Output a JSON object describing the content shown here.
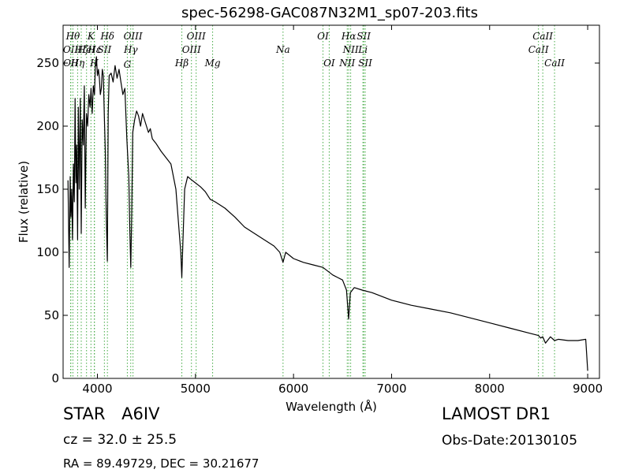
{
  "chart_data": {
    "type": "line",
    "title": "spec-56298-GAC087N32M1_sp07-203.fits",
    "xlabel": "Wavelength (Å)",
    "ylabel": "Flux (relative)",
    "xlim": [
      3650,
      9120
    ],
    "ylim": [
      0,
      280
    ],
    "xticks": [
      4000,
      5000,
      6000,
      7000,
      8000,
      9000
    ],
    "yticks": [
      0,
      50,
      100,
      150,
      200,
      250
    ],
    "grid": false,
    "line_color": "#000000",
    "marker_color": "#44aa44",
    "series": [
      {
        "x": [
          3700,
          3712,
          3722,
          3730,
          3738,
          3746,
          3755,
          3764,
          3772,
          3780,
          3788,
          3798,
          3805,
          3815,
          3825,
          3835,
          3845,
          3856,
          3866,
          3876,
          3888,
          3900,
          3912,
          3925,
          3935,
          3947,
          3958,
          3970,
          3980,
          3990,
          4000,
          4010,
          4020,
          4030,
          4040,
          4050,
          4060,
          4070,
          4080,
          4090,
          4101,
          4110,
          4120,
          4140,
          4160,
          4180,
          4200,
          4220,
          4240,
          4260,
          4280,
          4300,
          4320,
          4330,
          4340,
          4350,
          4360,
          4380,
          4400,
          4420,
          4440,
          4460,
          4480,
          4500,
          4520,
          4540,
          4560,
          4580,
          4600,
          4650,
          4700,
          4750,
          4800,
          4830,
          4850,
          4861,
          4872,
          4890,
          4920,
          4950,
          5000,
          5050,
          5100,
          5150,
          5200,
          5300,
          5400,
          5500,
          5600,
          5700,
          5800,
          5860,
          5893,
          5920,
          6000,
          6100,
          6200,
          6300,
          6400,
          6450,
          6500,
          6540,
          6562,
          6580,
          6620,
          6700,
          6800,
          7000,
          7200,
          7400,
          7600,
          7800,
          8000,
          8200,
          8400,
          8498,
          8520,
          8542,
          8570,
          8620,
          8662,
          8700,
          8800,
          8900,
          8980,
          9000
        ],
        "y": [
          157,
          88,
          160,
          128,
          150,
          110,
          170,
          140,
          222,
          155,
          185,
          110,
          215,
          150,
          222,
          115,
          205,
          185,
          232,
          135,
          210,
          200,
          225,
          215,
          230,
          210,
          232,
          225,
          250,
          255,
          240,
          245,
          238,
          225,
          230,
          245,
          240,
          210,
          180,
          130,
          93,
          210,
          240,
          242,
          235,
          248,
          238,
          245,
          235,
          225,
          230,
          190,
          160,
          120,
          88,
          130,
          195,
          205,
          212,
          208,
          200,
          210,
          205,
          200,
          195,
          198,
          190,
          188,
          186,
          180,
          175,
          170,
          150,
          120,
          100,
          80,
          108,
          150,
          160,
          158,
          155,
          152,
          148,
          142,
          140,
          135,
          128,
          120,
          115,
          110,
          105,
          100,
          92,
          100,
          95,
          92,
          90,
          88,
          82,
          80,
          78,
          70,
          47,
          68,
          72,
          70,
          68,
          62,
          58,
          55,
          52,
          48,
          44,
          40,
          36,
          34,
          32,
          33,
          28,
          33,
          30,
          31,
          30,
          30,
          31,
          6
        ]
      }
    ],
    "spectral_lines": [
      {
        "wavelength": 3727,
        "label": "OII",
        "row": 2
      },
      {
        "wavelength": 3729,
        "label": "OII",
        "row": 3
      },
      {
        "wavelength": 3750,
        "label": "Hθ",
        "row": 1
      },
      {
        "wavelength": 3798,
        "label": "Hη",
        "row": 3
      },
      {
        "wavelength": 3835,
        "label": "Hζ",
        "row": 2
      },
      {
        "wavelength": 3889,
        "label": "HeI",
        "row": 2
      },
      {
        "wavelength": 3934,
        "label": "K",
        "row": 1
      },
      {
        "wavelength": 3968,
        "label": "H",
        "row": 3
      },
      {
        "wavelength": 3970,
        "label": "Hε",
        "row": 2
      },
      {
        "wavelength": 4071,
        "label": "SII",
        "row": 2
      },
      {
        "wavelength": 4102,
        "label": "Hδ",
        "row": 1
      },
      {
        "wavelength": 4305,
        "label": "G",
        "row": 4
      },
      {
        "wavelength": 4340,
        "label": "Hγ",
        "row": 2
      },
      {
        "wavelength": 4363,
        "label": "OIII",
        "row": 1
      },
      {
        "wavelength": 4861,
        "label": "Hβ",
        "row": 3
      },
      {
        "wavelength": 4959,
        "label": "OIII",
        "row": 2
      },
      {
        "wavelength": 5007,
        "label": "OIII",
        "row": 1
      },
      {
        "wavelength": 5175,
        "label": "Mg",
        "row": 3
      },
      {
        "wavelength": 5893,
        "label": "Na",
        "row": 2
      },
      {
        "wavelength": 6300,
        "label": "OI",
        "row": 1
      },
      {
        "wavelength": 6364,
        "label": "OI",
        "row": 3
      },
      {
        "wavelength": 6548,
        "label": "NII",
        "row": 3
      },
      {
        "wavelength": 6563,
        "label": "Hα",
        "row": 1
      },
      {
        "wavelength": 6583,
        "label": "NII",
        "row": 2
      },
      {
        "wavelength": 6708,
        "label": "Li",
        "row": 2
      },
      {
        "wavelength": 6716,
        "label": "SII",
        "row": 1
      },
      {
        "wavelength": 6731,
        "label": "SII",
        "row": 3
      },
      {
        "wavelength": 8498,
        "label": "CaII",
        "row": 2
      },
      {
        "wavelength": 8542,
        "label": "CaII",
        "row": 1
      },
      {
        "wavelength": 8662,
        "label": "CaII",
        "row": 3
      }
    ]
  },
  "info": {
    "class_label": "STAR",
    "subclass": "A6IV",
    "survey": "LAMOST DR1",
    "cz_text": "cz = 32.0 ± 25.5",
    "obs_date": "Obs-Date:20130105",
    "coords": "RA = 89.49729, DEC = 30.21677"
  }
}
